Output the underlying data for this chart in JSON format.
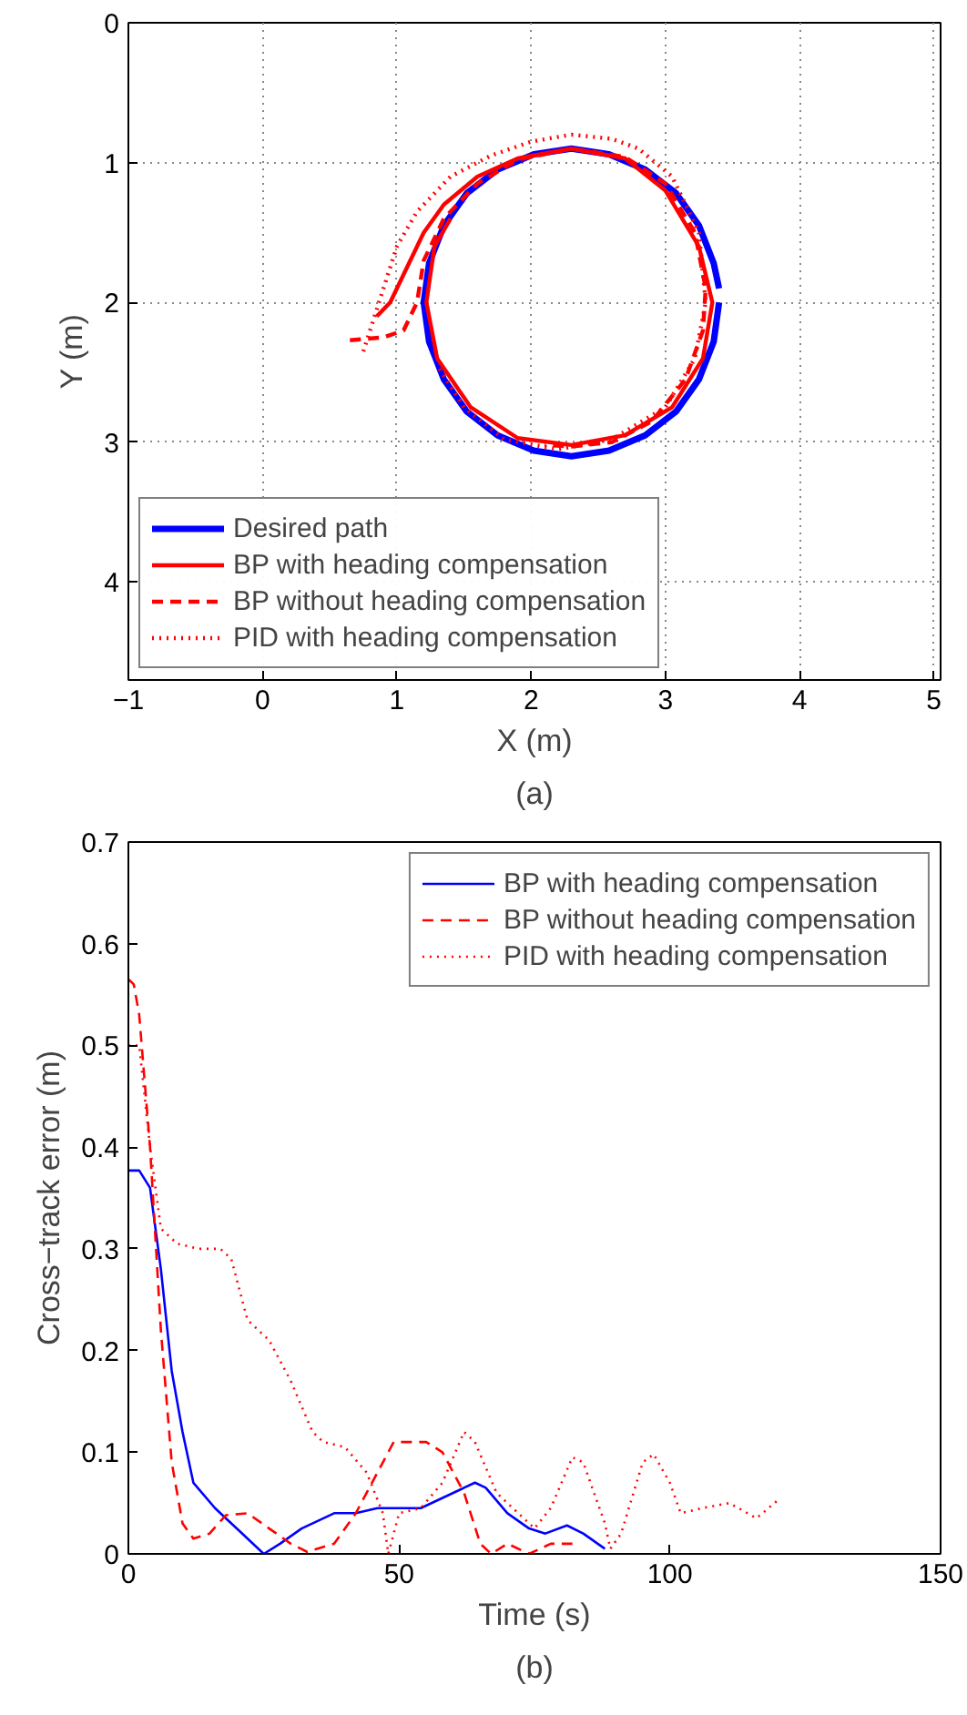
{
  "chart_data": [
    {
      "type": "line",
      "xlabel": "X (m)",
      "ylabel": "Y (m)",
      "xlim": [
        -1,
        5.05
      ],
      "ylim": [
        4.7,
        0
      ],
      "xticks": [
        -1,
        0,
        1,
        2,
        3,
        4,
        5
      ],
      "yticks": [
        0,
        1,
        2,
        3,
        4
      ],
      "grid": true,
      "legend": "bottom left",
      "annotations": [
        "(a)"
      ],
      "series": [
        {
          "name": "Desired path",
          "color": "#0000ff",
          "line_style": "solid",
          "x": [
            3.4,
            3.36,
            3.25,
            3.08,
            2.85,
            2.58,
            2.3,
            2.02,
            1.75,
            1.52,
            1.35,
            1.24,
            1.2,
            1.24,
            1.35,
            1.52,
            1.75,
            2.02,
            2.3,
            2.58,
            2.85,
            3.08,
            3.25,
            3.36,
            3.4
          ],
          "values": [
            2.0,
            2.28,
            2.55,
            2.78,
            2.95,
            3.06,
            3.1,
            3.06,
            2.95,
            2.78,
            2.55,
            2.28,
            2.0,
            1.72,
            1.45,
            1.22,
            1.05,
            0.94,
            0.9,
            0.94,
            1.05,
            1.22,
            1.45,
            1.72,
            1.9
          ]
        },
        {
          "name": "BP with heading compensation",
          "color": "#ff0000",
          "line_style": "solid",
          "x": [
            0.85,
            0.95,
            1.05,
            1.2,
            1.35,
            1.6,
            1.9,
            2.3,
            2.7,
            3.0,
            3.25,
            3.35,
            3.28,
            3.05,
            2.7,
            2.3,
            1.9,
            1.55,
            1.3,
            1.22,
            1.28,
            1.4
          ],
          "values": [
            2.1,
            2.0,
            1.8,
            1.5,
            1.3,
            1.1,
            0.97,
            0.9,
            0.97,
            1.2,
            1.6,
            2.0,
            2.4,
            2.75,
            2.95,
            3.02,
            2.97,
            2.75,
            2.4,
            2.0,
            1.6,
            1.4
          ]
        },
        {
          "name": "BP without heading compensation",
          "color": "#ff0000",
          "line_style": "dashed",
          "x": [
            0.65,
            0.9,
            1.05,
            1.15,
            1.2,
            1.35,
            1.6,
            1.9,
            2.3,
            2.7,
            3.0,
            3.22,
            3.3,
            3.28,
            3.15,
            2.9,
            2.6,
            2.3,
            2.1
          ],
          "values": [
            2.27,
            2.25,
            2.2,
            2.0,
            1.7,
            1.4,
            1.15,
            0.98,
            0.9,
            0.96,
            1.15,
            1.5,
            1.9,
            2.2,
            2.55,
            2.85,
            3.0,
            3.03,
            3.02
          ]
        },
        {
          "name": "PID with heading compensation",
          "color": "#ff0000",
          "line_style": "dotted",
          "x": [
            0.75,
            0.8,
            0.9,
            1.0,
            1.15,
            1.4,
            1.7,
            2.0,
            2.3,
            2.6,
            2.8,
            3.05,
            3.25,
            3.3,
            3.22,
            3.0,
            2.6,
            2.2,
            1.8,
            1.5,
            1.3
          ],
          "values": [
            2.35,
            2.2,
            1.9,
            1.6,
            1.35,
            1.1,
            0.95,
            0.85,
            0.8,
            0.83,
            0.9,
            1.1,
            1.5,
            2.0,
            2.4,
            2.75,
            2.98,
            3.05,
            2.98,
            2.75,
            2.45
          ]
        }
      ]
    },
    {
      "type": "line",
      "xlabel": "Time (s)",
      "ylabel": "Cross−track error (m)",
      "xlim": [
        0,
        150
      ],
      "ylim": [
        0,
        0.7
      ],
      "xticks": [
        0,
        50,
        100,
        150
      ],
      "yticks": [
        0,
        0.1,
        0.2,
        0.3,
        0.4,
        0.5,
        0.6,
        0.7
      ],
      "legend": "top right",
      "annotations": [
        "(b)"
      ],
      "series": [
        {
          "name": "BP with heading compensation",
          "color": "#0000ff",
          "line_style": "solid",
          "x": [
            0,
            2,
            4,
            6,
            8,
            10,
            12,
            16,
            20,
            25,
            28,
            32,
            38,
            42,
            46,
            50,
            54,
            60,
            64,
            66,
            70,
            74,
            77,
            81,
            84,
            88
          ],
          "values": [
            0.377,
            0.377,
            0.36,
            0.28,
            0.18,
            0.12,
            0.07,
            0.045,
            0.025,
            0.0,
            0.01,
            0.025,
            0.04,
            0.04,
            0.045,
            0.045,
            0.045,
            0.06,
            0.07,
            0.065,
            0.04,
            0.025,
            0.02,
            0.028,
            0.02,
            0.005
          ]
        },
        {
          "name": "BP without heading compensation",
          "color": "#ff0000",
          "line_style": "dashed",
          "x": [
            0,
            1,
            2,
            4,
            6,
            8,
            10,
            12,
            15,
            18,
            22,
            26,
            30,
            33,
            38,
            42,
            46,
            49,
            55,
            58,
            62,
            65,
            67,
            70,
            74,
            78,
            82
          ],
          "values": [
            0.565,
            0.56,
            0.53,
            0.4,
            0.22,
            0.09,
            0.03,
            0.015,
            0.02,
            0.038,
            0.04,
            0.025,
            0.01,
            0.002,
            0.01,
            0.04,
            0.08,
            0.11,
            0.11,
            0.1,
            0.06,
            0.01,
            0.0,
            0.01,
            0.0,
            0.01,
            0.01
          ]
        },
        {
          "name": "PID with heading compensation",
          "color": "#ff0000",
          "line_style": "dotted",
          "x": [
            0,
            2,
            4,
            6,
            9,
            13,
            17,
            19,
            22,
            26,
            30,
            34,
            36,
            40,
            44,
            47,
            48,
            50,
            54,
            58,
            62,
            64,
            68,
            72,
            75,
            78,
            82,
            84,
            88,
            89,
            91,
            95,
            97,
            100,
            102,
            106,
            111,
            116,
            120
          ],
          "values": [
            0.5,
            0.5,
            0.4,
            0.32,
            0.305,
            0.3,
            0.3,
            0.29,
            0.23,
            0.21,
            0.17,
            0.12,
            0.11,
            0.105,
            0.08,
            0.04,
            0.0,
            0.04,
            0.045,
            0.07,
            0.12,
            0.11,
            0.06,
            0.04,
            0.025,
            0.045,
            0.095,
            0.09,
            0.03,
            0.005,
            0.02,
            0.09,
            0.098,
            0.07,
            0.04,
            0.045,
            0.05,
            0.035,
            0.053
          ]
        }
      ]
    }
  ]
}
